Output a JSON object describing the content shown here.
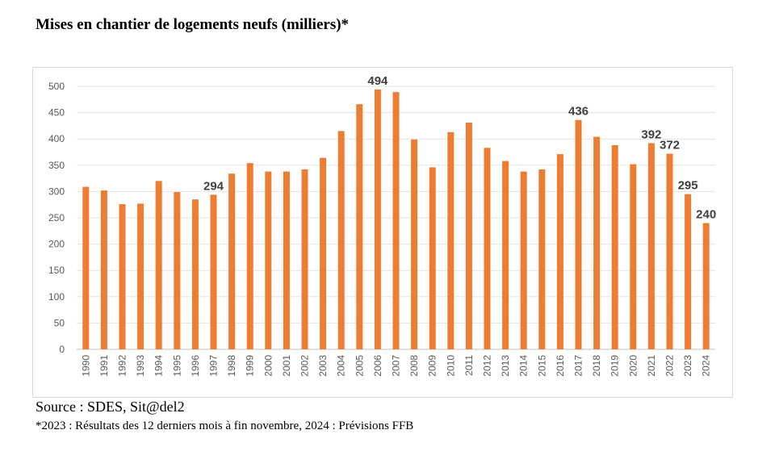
{
  "title": "Mises en chantier de logements neufs (milliers)*",
  "source": "Source : SDES, Sit@del2",
  "footnote": "*2023 : Résultats des 12 derniers mois à fin novembre, 2024 : Prévisions FFB",
  "chart_data": {
    "type": "bar",
    "title": "Mises en chantier de logements neufs (milliers)*",
    "xlabel": "",
    "ylabel": "",
    "ylim": [
      0,
      500
    ],
    "yticks": [
      0,
      50,
      100,
      150,
      200,
      250,
      300,
      350,
      400,
      450,
      500
    ],
    "grid": true,
    "legend": "none",
    "bar_color": "#ED7D31",
    "categories": [
      "1990",
      "1991",
      "1992",
      "1993",
      "1994",
      "1995",
      "1996",
      "1997",
      "1998",
      "1999",
      "2000",
      "2001",
      "2002",
      "2003",
      "2004",
      "2005",
      "2006",
      "2007",
      "2008",
      "2009",
      "2010",
      "2011",
      "2012",
      "2013",
      "2014",
      "2015",
      "2016",
      "2017",
      "2018",
      "2019",
      "2020",
      "2021",
      "2022",
      "2023",
      "2024"
    ],
    "values": [
      309,
      302,
      276,
      277,
      320,
      299,
      285,
      294,
      334,
      354,
      338,
      338,
      342,
      364,
      415,
      466,
      494,
      489,
      399,
      346,
      413,
      431,
      383,
      358,
      338,
      342,
      371,
      436,
      404,
      388,
      352,
      392,
      372,
      295,
      240
    ],
    "data_labels": [
      {
        "category": "1997",
        "label": "294"
      },
      {
        "category": "2006",
        "label": "494"
      },
      {
        "category": "2017",
        "label": "436"
      },
      {
        "category": "2021",
        "label": "392"
      },
      {
        "category": "2022",
        "label": "372"
      },
      {
        "category": "2023",
        "label": "295"
      },
      {
        "category": "2024",
        "label": "240"
      }
    ]
  }
}
